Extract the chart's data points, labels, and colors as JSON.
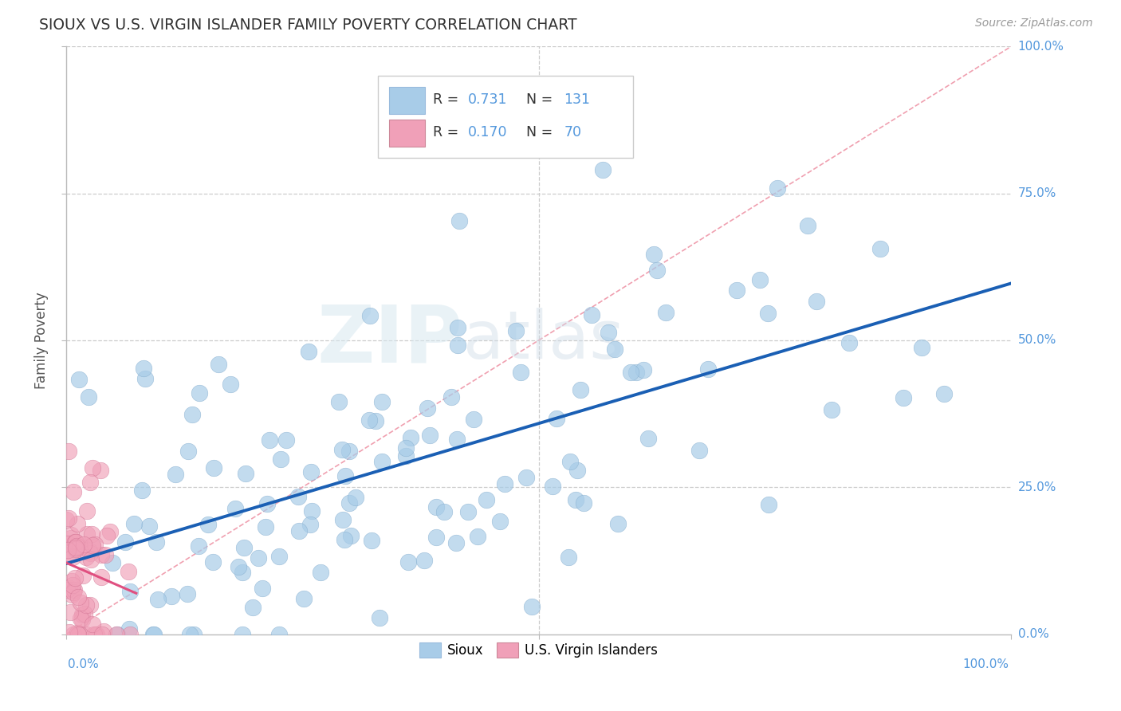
{
  "title": "SIOUX VS U.S. VIRGIN ISLANDER FAMILY POVERTY CORRELATION CHART",
  "source": "Source: ZipAtlas.com",
  "ylabel": "Family Poverty",
  "legend_label1": "Sioux",
  "legend_label2": "U.S. Virgin Islanders",
  "R1": 0.731,
  "N1": 131,
  "R2": 0.17,
  "N2": 70,
  "color_sioux": "#a8cce8",
  "color_vi": "#f0a0b8",
  "color_line_sioux": "#1a5fb4",
  "color_line_vi": "#e05080",
  "watermark_zip": "ZIP",
  "watermark_atlas": "atlas"
}
